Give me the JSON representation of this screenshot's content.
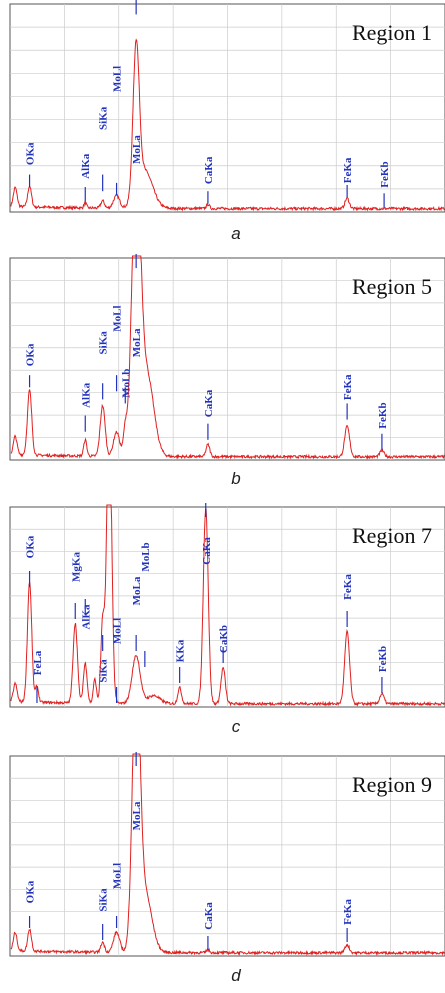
{
  "colors": {
    "spectrum": "#e02020",
    "label": "#2233bb",
    "grid": "#cccccc",
    "border": "#555555"
  },
  "panels": [
    {
      "id": "a",
      "caption": "a",
      "region": "Region 1",
      "chart_data": {
        "type": "line",
        "xlim": [
          0,
          10
        ],
        "ylim": [
          0,
          100
        ],
        "peaks": [
          {
            "x": 0.45,
            "h": 10,
            "w": 0.06
          },
          {
            "x": 1.73,
            "h": 2.5,
            "w": 0.04
          },
          {
            "x": 2.13,
            "h": 3.5,
            "w": 0.06
          },
          {
            "x": 2.45,
            "h": 6,
            "w": 0.1
          },
          {
            "x": 2.9,
            "h": 72,
            "w": 0.1
          },
          {
            "x": 3.1,
            "h": 18,
            "w": 0.25
          },
          {
            "x": 4.55,
            "h": 2,
            "w": 0.05
          },
          {
            "x": 7.75,
            "h": 5,
            "w": 0.07
          }
        ],
        "labels": [
          {
            "text": "OKa",
            "x": 0.45,
            "tick": [
              12,
              18
            ],
            "textPos": 28
          },
          {
            "text": "AlKa",
            "x": 1.73,
            "tick": [
              5,
              12
            ],
            "textPos": 22
          },
          {
            "text": "SiKa",
            "x": 2.13,
            "tick": [
              10,
              18
            ],
            "textPos": 45
          },
          {
            "text": "MoLl",
            "x": 2.45,
            "tick": [
              8,
              14
            ],
            "textPos": 64
          },
          {
            "text": "MoLa",
            "x": 2.9,
            "tick": [
              95,
              102
            ],
            "textPos": 30
          },
          {
            "text": "CaKa",
            "x": 4.55,
            "tick": [
              4,
              10
            ],
            "textPos": 20
          },
          {
            "text": "FeKa",
            "x": 7.75,
            "tick": [
              7,
              13
            ],
            "textPos": 20
          },
          {
            "text": "FeKb",
            "x": 8.6,
            "tick": [
              2,
              9
            ],
            "textPos": 18
          }
        ]
      }
    },
    {
      "id": "b",
      "caption": "b",
      "region": "Region 5",
      "chart_data": {
        "type": "line",
        "xlim": [
          0,
          10
        ],
        "ylim": [
          0,
          100
        ],
        "peaks": [
          {
            "x": 0.45,
            "h": 32,
            "w": 0.07
          },
          {
            "x": 1.73,
            "h": 8,
            "w": 0.05
          },
          {
            "x": 2.13,
            "h": 25,
            "w": 0.08
          },
          {
            "x": 2.45,
            "h": 12,
            "w": 0.1
          },
          {
            "x": 2.65,
            "h": 12,
            "w": 0.06
          },
          {
            "x": 2.9,
            "h": 140,
            "w": 0.14
          },
          {
            "x": 3.15,
            "h": 40,
            "w": 0.22
          },
          {
            "x": 4.55,
            "h": 6,
            "w": 0.06
          },
          {
            "x": 7.75,
            "h": 15,
            "w": 0.08
          },
          {
            "x": 8.55,
            "h": 3,
            "w": 0.07
          }
        ],
        "labels": [
          {
            "text": "OKa",
            "x": 0.45,
            "tick": [
              36,
              42
            ],
            "textPos": 52
          },
          {
            "text": "AlKa",
            "x": 1.73,
            "tick": [
              14,
              22
            ],
            "textPos": 32
          },
          {
            "text": "SiKa",
            "x": 2.13,
            "tick": [
              30,
              38
            ],
            "textPos": 58
          },
          {
            "text": "MoLl",
            "x": 2.45,
            "tick": [
              34,
              42
            ],
            "textPos": 70
          },
          {
            "text": "MoLb",
            "x": 2.65,
            "tick": [
              28,
              36
            ],
            "textPos": 38
          },
          {
            "text": "MoLa",
            "x": 2.9,
            "tick": [
              95,
              102
            ],
            "textPos": 58
          },
          {
            "text": "CaKa",
            "x": 4.55,
            "tick": [
              10,
              18
            ],
            "textPos": 28
          },
          {
            "text": "FeKa",
            "x": 7.75,
            "tick": [
              20,
              28
            ],
            "textPos": 36
          },
          {
            "text": "FeKb",
            "x": 8.55,
            "tick": [
              5,
              13
            ],
            "textPos": 22
          }
        ]
      }
    },
    {
      "id": "c",
      "caption": "c",
      "region": "Region 7",
      "chart_data": {
        "type": "line",
        "xlim": [
          0,
          10
        ],
        "ylim": [
          0,
          100
        ],
        "peaks": [
          {
            "x": 0.45,
            "h": 60,
            "w": 0.07
          },
          {
            "x": 0.62,
            "h": 8,
            "w": 0.05
          },
          {
            "x": 1.5,
            "h": 40,
            "w": 0.07
          },
          {
            "x": 1.73,
            "h": 20,
            "w": 0.06
          },
          {
            "x": 1.95,
            "h": 12,
            "w": 0.05
          },
          {
            "x": 2.13,
            "h": 40,
            "w": 0.06
          },
          {
            "x": 2.28,
            "h": 150,
            "w": 0.08
          },
          {
            "x": 2.9,
            "h": 24,
            "w": 0.13
          },
          {
            "x": 3.3,
            "h": 4,
            "w": 0.2
          },
          {
            "x": 3.9,
            "h": 8,
            "w": 0.06
          },
          {
            "x": 4.5,
            "h": 98,
            "w": 0.08
          },
          {
            "x": 4.9,
            "h": 18,
            "w": 0.07
          },
          {
            "x": 7.75,
            "h": 36,
            "w": 0.08
          },
          {
            "x": 8.55,
            "h": 5,
            "w": 0.07
          }
        ],
        "labels": [
          {
            "text": "OKa",
            "x": 0.45,
            "tick": [
              60,
              68
            ],
            "textPos": 80
          },
          {
            "text": "FeLa",
            "x": 0.62,
            "tick": [
              2,
              10
            ],
            "textPos": 22
          },
          {
            "text": "MgKa",
            "x": 1.5,
            "tick": [
              44,
              52
            ],
            "textPos": 70
          },
          {
            "text": "AlKa",
            "x": 1.73,
            "tick": [
              46,
              54
            ],
            "textPos": 45
          },
          {
            "text": "SiKa",
            "x": 2.13,
            "tick": [
              28,
              36
            ],
            "textPos": 18
          },
          {
            "text": "MoLl",
            "x": 2.45,
            "tick": [
              2,
              10
            ],
            "textPos": 38
          },
          {
            "text": "MoLa",
            "x": 2.9,
            "tick": [
              28,
              36
            ],
            "textPos": 58
          },
          {
            "text": "MoLb",
            "x": 3.1,
            "tick": [
              20,
              28
            ],
            "textPos": 75
          },
          {
            "text": "KKa",
            "x": 3.9,
            "tick": [
              12,
              20
            ],
            "textPos": 28
          },
          {
            "text": "CaKa",
            "x": 4.5,
            "tick": [
              95,
              102
            ],
            "textPos": 78
          },
          {
            "text": "CaKb",
            "x": 4.9,
            "tick": [
              22,
              30
            ],
            "textPos": 34
          },
          {
            "text": "FeKa",
            "x": 7.75,
            "tick": [
              40,
              48
            ],
            "textPos": 60
          },
          {
            "text": "FeKb",
            "x": 8.55,
            "tick": [
              7,
              15
            ],
            "textPos": 24
          }
        ]
      }
    },
    {
      "id": "d",
      "caption": "d",
      "region": "Region 9",
      "chart_data": {
        "type": "line",
        "xlim": [
          0,
          10
        ],
        "ylim": [
          0,
          100
        ],
        "peaks": [
          {
            "x": 0.45,
            "h": 11,
            "w": 0.06
          },
          {
            "x": 2.13,
            "h": 5,
            "w": 0.06
          },
          {
            "x": 2.45,
            "h": 10,
            "w": 0.1
          },
          {
            "x": 2.9,
            "h": 140,
            "w": 0.12
          },
          {
            "x": 3.1,
            "h": 30,
            "w": 0.22
          },
          {
            "x": 4.55,
            "h": 1.5,
            "w": 0.05
          },
          {
            "x": 7.75,
            "h": 4,
            "w": 0.07
          }
        ],
        "labels": [
          {
            "text": "OKa",
            "x": 0.45,
            "tick": [
              14,
              20
            ],
            "textPos": 32
          },
          {
            "text": "SiKa",
            "x": 2.13,
            "tick": [
              8,
              16
            ],
            "textPos": 28
          },
          {
            "text": "MoLl",
            "x": 2.45,
            "tick": [
              14,
              20
            ],
            "textPos": 40
          },
          {
            "text": "MoLa",
            "x": 2.9,
            "tick": [
              95,
              102
            ],
            "textPos": 70
          },
          {
            "text": "CaKa",
            "x": 4.55,
            "tick": [
              3,
              10
            ],
            "textPos": 20
          },
          {
            "text": "FeKa",
            "x": 7.75,
            "tick": [
              7,
              14
            ],
            "textPos": 22
          }
        ]
      }
    }
  ]
}
